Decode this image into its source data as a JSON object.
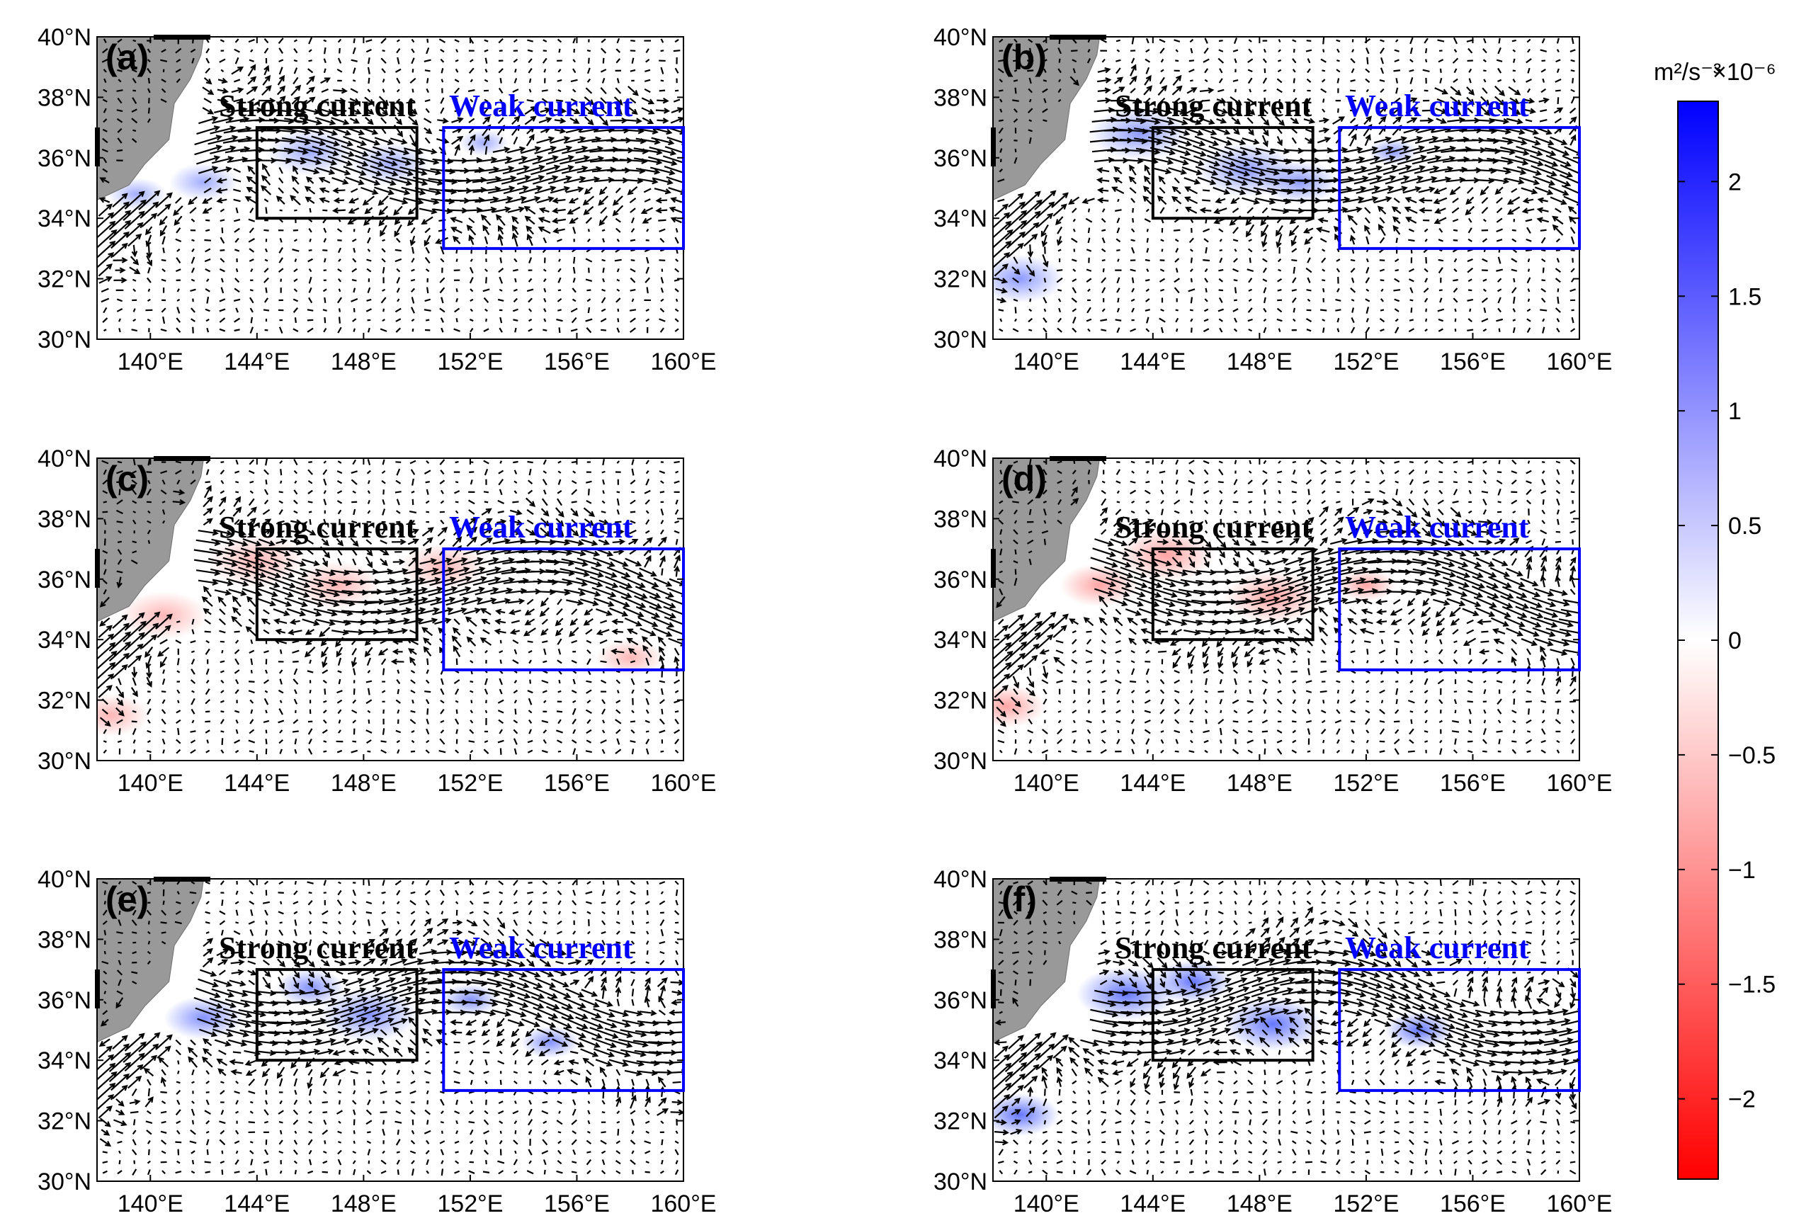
{
  "chart_data": {
    "type": "heatmap",
    "colorbar": {
      "unit_label": "m²/s⁻³",
      "scale_label": "×10⁻⁶",
      "range": [
        -2.35,
        2.35
      ],
      "ticks": [
        2,
        1.5,
        1,
        0.5,
        0,
        -0.5,
        -1,
        -1.5,
        -2
      ],
      "tick_labels": [
        "2",
        "1.5",
        "1",
        "0.5",
        "0",
        "−0.5",
        "−1",
        "−1.5",
        "−2"
      ],
      "colors": {
        "low": "#ff0000",
        "mid": "#ffffff",
        "high": "#0000ff"
      }
    },
    "x_ticks": [
      "140°E",
      "144°E",
      "148°E",
      "152°E",
      "156°E",
      "160°E"
    ],
    "y_ticks": [
      "40°N",
      "38°N",
      "36°N",
      "34°N",
      "32°N",
      "30°N"
    ],
    "xlim": [
      138,
      160
    ],
    "ylim": [
      30,
      40
    ],
    "x_tick_values": [
      140,
      144,
      148,
      152,
      156,
      160
    ],
    "y_tick_values": [
      40,
      38,
      36,
      34,
      32,
      30
    ],
    "boxes": {
      "strong": {
        "label": "Strong current",
        "lon": [
          144,
          150
        ],
        "lat": [
          34,
          37
        ],
        "color": "#000000"
      },
      "weak": {
        "label": "Weak current",
        "lon": [
          151,
          160
        ],
        "lat": [
          33,
          37
        ],
        "color": "#0000ff"
      }
    },
    "panels": [
      {
        "label": "(a)",
        "sign": 1,
        "intensity": 0.45,
        "blobs": [
          [
            146.0,
            36.2,
            0.9
          ],
          [
            149.0,
            35.8,
            0.8
          ],
          [
            142.0,
            35.2,
            0.7
          ],
          [
            139.5,
            34.8,
            0.6
          ],
          [
            152.5,
            36.5,
            0.5
          ]
        ]
      },
      {
        "label": "(b)",
        "sign": 1,
        "intensity": 0.55,
        "blobs": [
          [
            143.5,
            36.8,
            1.0
          ],
          [
            147.5,
            35.6,
            1.0
          ],
          [
            149.5,
            35.2,
            0.8
          ],
          [
            139.0,
            32.0,
            0.9
          ],
          [
            153.0,
            36.2,
            0.5
          ]
        ]
      },
      {
        "label": "(c)",
        "sign": -1,
        "intensity": 0.4,
        "blobs": [
          [
            140.5,
            34.8,
            0.9
          ],
          [
            144.0,
            36.6,
            1.0
          ],
          [
            147.0,
            35.8,
            0.9
          ],
          [
            151.0,
            36.4,
            0.9
          ],
          [
            138.5,
            31.5,
            0.8
          ],
          [
            158.0,
            33.4,
            0.7
          ]
        ]
      },
      {
        "label": "(d)",
        "sign": -1,
        "intensity": 0.5,
        "blobs": [
          [
            142.0,
            35.8,
            0.8
          ],
          [
            144.5,
            36.8,
            1.0
          ],
          [
            148.5,
            35.4,
            1.0
          ],
          [
            138.5,
            31.8,
            0.8
          ],
          [
            152.0,
            35.8,
            0.6
          ]
        ]
      },
      {
        "label": "(e)",
        "sign": 1,
        "intensity": 0.6,
        "blobs": [
          [
            142.0,
            35.4,
            0.8
          ],
          [
            148.2,
            35.5,
            1.0
          ],
          [
            146.0,
            36.4,
            0.7
          ],
          [
            152.0,
            36.0,
            0.6
          ],
          [
            155.0,
            34.6,
            0.6
          ]
        ]
      },
      {
        "label": "(f)",
        "sign": 1,
        "intensity": 0.75,
        "blobs": [
          [
            143.0,
            36.2,
            1.0
          ],
          [
            145.5,
            36.6,
            0.8
          ],
          [
            148.5,
            35.2,
            1.0
          ],
          [
            139.0,
            32.2,
            0.8
          ],
          [
            154.0,
            35.0,
            0.7
          ]
        ]
      }
    ]
  }
}
